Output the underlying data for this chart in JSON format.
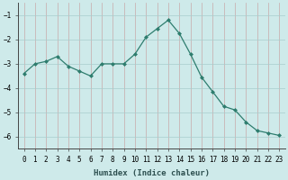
{
  "x": [
    0,
    1,
    2,
    3,
    4,
    5,
    6,
    7,
    8,
    9,
    10,
    11,
    12,
    13,
    14,
    15,
    16,
    17,
    18,
    19,
    20,
    21,
    22,
    23
  ],
  "y": [
    -3.4,
    -3.0,
    -2.9,
    -2.7,
    -3.1,
    -3.3,
    -3.5,
    -3.0,
    -3.0,
    -3.0,
    -2.6,
    -1.9,
    -1.55,
    -1.2,
    -1.75,
    -2.6,
    -3.55,
    -4.15,
    -4.75,
    -4.9,
    -5.4,
    -5.75,
    -5.85,
    -5.95
  ],
  "line_color": "#2e7d6e",
  "marker": "D",
  "marker_size": 2,
  "bg_color": "#ceeaea",
  "grid_color": "#a8cccc",
  "xlabel": "Humidex (Indice chaleur)",
  "xlim": [
    -0.5,
    23.5
  ],
  "ylim": [
    -6.5,
    -0.5
  ],
  "yticks": [
    -6,
    -5,
    -4,
    -3,
    -2,
    -1
  ],
  "label_fontsize": 6.5,
  "tick_fontsize": 5.5
}
